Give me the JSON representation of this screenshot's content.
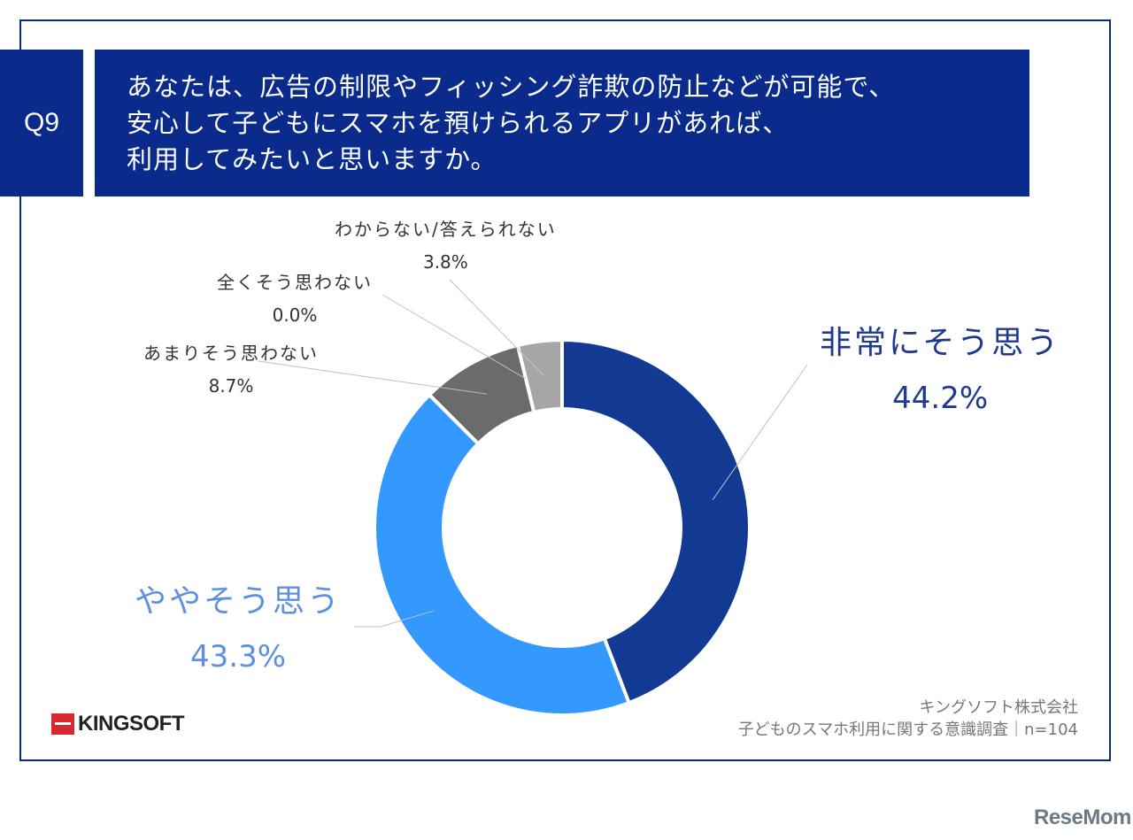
{
  "question": {
    "number": "Q9",
    "lines": [
      "あなたは、広告の制限やフィッシング詐欺の防止などが可能で、",
      "安心して子どもにスマホを預けられるアプリがあれば、",
      "利用してみたいと思いますか。"
    ]
  },
  "chart_data": {
    "type": "pie",
    "donut": true,
    "categories": [
      "非常にそう思う",
      "ややそう思う",
      "あまりそう思わない",
      "全くそう思わない",
      "わからない/答えられない"
    ],
    "values": [
      44.2,
      43.3,
      8.7,
      0.0,
      3.8
    ],
    "value_labels": [
      "44.2%",
      "43.3%",
      "8.7%",
      "0.0%",
      "3.8%"
    ],
    "colors": [
      "#123a92",
      "#3399ff",
      "#6b6b6b",
      "#8a8a8a",
      "#a6a6a6"
    ],
    "start_angle": "12 o'clock",
    "direction": "clockwise"
  },
  "source": {
    "line1": "キングソフト株式会社",
    "line2": "子どものスマホ利用に関する意識調査｜n=104"
  },
  "logo_text": "KINGSOFT",
  "watermark": "ReseMom"
}
